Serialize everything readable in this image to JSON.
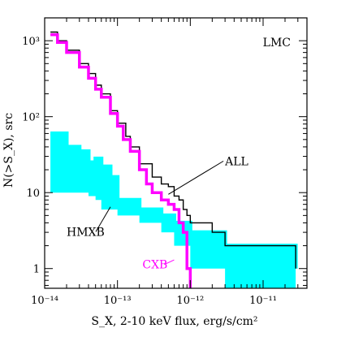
{
  "chart_data": {
    "type": "line",
    "title": "",
    "panel_label": "LMC",
    "xlabel": "S_X, 2-10 keV flux, erg/s/cm²",
    "ylabel": "N(>S_X), src",
    "xscale": "log",
    "yscale": "log",
    "xlim": [
      1e-14,
      4e-11
    ],
    "ylim": [
      0.55,
      2000
    ],
    "x_ticks": [
      {
        "value": 1e-14,
        "label": "10⁻¹⁴"
      },
      {
        "value": 1e-13,
        "label": "10⁻¹³"
      },
      {
        "value": 1e-12,
        "label": "10⁻¹²"
      },
      {
        "value": 1e-11,
        "label": "10⁻¹¹"
      }
    ],
    "y_ticks": [
      {
        "value": 1,
        "label": "1"
      },
      {
        "value": 10,
        "label": "10"
      },
      {
        "value": 100,
        "label": "10²"
      },
      {
        "value": 1000,
        "label": "10³"
      }
    ],
    "grid": false,
    "legend": "none",
    "series": [
      {
        "name": "ALL",
        "color": "#000000",
        "style": "step",
        "points": [
          [
            1.2e-14,
            1300
          ],
          [
            1.5e-14,
            1000
          ],
          [
            2e-14,
            750
          ],
          [
            3e-14,
            500
          ],
          [
            4e-14,
            370
          ],
          [
            5e-14,
            260
          ],
          [
            6e-14,
            200
          ],
          [
            8e-14,
            120
          ],
          [
            1e-13,
            82
          ],
          [
            1.3e-13,
            55
          ],
          [
            1.5e-13,
            40
          ],
          [
            2e-13,
            24
          ],
          [
            3e-13,
            16
          ],
          [
            4e-13,
            13
          ],
          [
            5e-13,
            12
          ],
          [
            6e-13,
            9
          ],
          [
            7e-13,
            8
          ],
          [
            8e-13,
            6
          ],
          [
            9e-13,
            5
          ],
          [
            1e-12,
            4
          ],
          [
            2e-12,
            3
          ],
          [
            3e-12,
            2
          ],
          [
            2.8e-11,
            1
          ]
        ]
      },
      {
        "name": "CXB",
        "color": "#ff00ff",
        "style": "step",
        "points": [
          [
            1.2e-14,
            1200
          ],
          [
            1.5e-14,
            950
          ],
          [
            2e-14,
            700
          ],
          [
            3e-14,
            450
          ],
          [
            4e-14,
            320
          ],
          [
            5e-14,
            230
          ],
          [
            6e-14,
            180
          ],
          [
            8e-14,
            110
          ],
          [
            1e-13,
            75
          ],
          [
            1.2e-13,
            50
          ],
          [
            1.5e-13,
            35
          ],
          [
            2e-13,
            20
          ],
          [
            2.5e-13,
            13
          ],
          [
            3e-13,
            10
          ],
          [
            4e-13,
            8
          ],
          [
            5e-13,
            7
          ],
          [
            6e-13,
            6
          ],
          [
            7e-13,
            4
          ],
          [
            8e-13,
            3
          ],
          [
            9e-13,
            1
          ],
          [
            1e-12,
            0.5
          ]
        ]
      },
      {
        "name": "HMXB",
        "color": "#00ffff",
        "style": "band",
        "lower": [
          [
            1.2e-14,
            10
          ],
          [
            1.7e-14,
            10
          ],
          [
            2.3e-14,
            10
          ],
          [
            3e-14,
            10
          ],
          [
            4e-14,
            10
          ],
          [
            5e-14,
            9
          ],
          [
            6e-14,
            8
          ],
          [
            8e-14,
            6
          ],
          [
            1e-13,
            6
          ],
          [
            2e-13,
            5
          ],
          [
            4e-13,
            4
          ],
          [
            6e-13,
            3
          ],
          [
            1e-12,
            2
          ],
          [
            3e-12,
            1
          ]
        ],
        "upper": [
          [
            1.2e-14,
            60
          ],
          [
            2e-14,
            40
          ],
          [
            3e-14,
            35
          ],
          [
            4e-14,
            25
          ],
          [
            5e-14,
            28
          ],
          [
            6e-14,
            22
          ],
          [
            8e-14,
            16
          ],
          [
            1e-13,
            8
          ],
          [
            2e-13,
            6
          ],
          [
            4e-13,
            5
          ],
          [
            6e-13,
            4
          ],
          [
            1e-12,
            3
          ],
          [
            3e-12,
            2
          ],
          [
            2.8e-11,
            1
          ]
        ]
      }
    ],
    "annotations": [
      {
        "text": "ALL",
        "color": "#000000",
        "text_at": [
          3e-12,
          23
        ],
        "arrow_to": [
          5e-13,
          9.5
        ]
      },
      {
        "text": "HMXB",
        "color": "#000000",
        "text_at": [
          2e-14,
          2.7
        ],
        "arrow_to": [
          8e-14,
          6.5
        ]
      },
      {
        "text": "CXB",
        "color": "#ff00ff",
        "text_at": [
          2.2e-13,
          1
        ],
        "arrow_to": [
          6e-13,
          1.3
        ]
      }
    ]
  }
}
